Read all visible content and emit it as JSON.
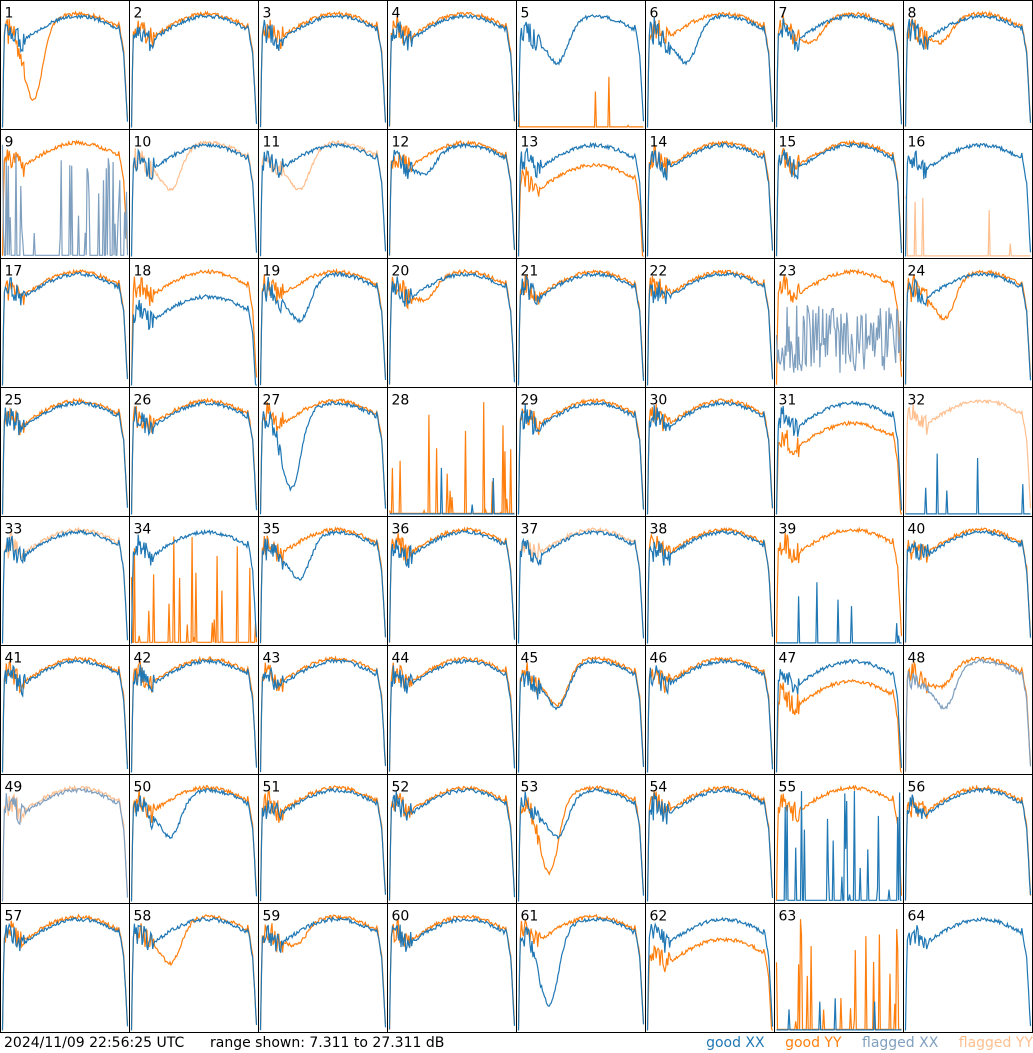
{
  "footer": {
    "timestamp": "2024/11/09 22:56:25 UTC",
    "range": "range shown: 7.311 to 27.311 dB"
  },
  "legend": [
    {
      "label": "good XX",
      "color": "#1f77b4"
    },
    {
      "label": "good YY",
      "color": "#ff7f0e"
    },
    {
      "label": "flagged XX",
      "color": "#7f9fbf"
    },
    {
      "label": "flagged YY",
      "color": "#ffbf8f"
    }
  ],
  "chart_data": {
    "type": "line",
    "grid": {
      "rows": 8,
      "cols": 8
    },
    "panels": [
      {
        "id": "1",
        "xx": "good",
        "yy": "good",
        "shape_xx": "normal",
        "shape_yy": "deep_dip"
      },
      {
        "id": "2",
        "xx": "good",
        "yy": "good",
        "shape_xx": "normal",
        "shape_yy": "normal"
      },
      {
        "id": "3",
        "xx": "good",
        "yy": "good",
        "shape_xx": "normal",
        "shape_yy": "normal"
      },
      {
        "id": "4",
        "xx": "good",
        "yy": "good",
        "shape_xx": "normal",
        "shape_yy": "normal"
      },
      {
        "id": "5",
        "xx": "good",
        "yy": "good",
        "shape_xx": "dip",
        "shape_yy": "bottom"
      },
      {
        "id": "6",
        "xx": "good",
        "yy": "good",
        "shape_xx": "dip",
        "shape_yy": "normal"
      },
      {
        "id": "7",
        "xx": "good",
        "yy": "good",
        "shape_xx": "normal",
        "shape_yy": "shallow_dip"
      },
      {
        "id": "8",
        "xx": "good",
        "yy": "good",
        "shape_xx": "normal",
        "shape_yy": "shallow_dip"
      },
      {
        "id": "9",
        "xx": "flagged",
        "yy": "good",
        "shape_xx": "spikes",
        "shape_yy": "normal"
      },
      {
        "id": "10",
        "xx": "good",
        "yy": "flagged",
        "shape_xx": "normal",
        "shape_yy": "dip"
      },
      {
        "id": "11",
        "xx": "good",
        "yy": "flagged",
        "shape_xx": "normal",
        "shape_yy": "dip"
      },
      {
        "id": "12",
        "xx": "good",
        "yy": "good",
        "shape_xx": "shallow_dip",
        "shape_yy": "normal"
      },
      {
        "id": "13",
        "xx": "good",
        "yy": "good",
        "shape_xx": "normal",
        "shape_yy": "low"
      },
      {
        "id": "14",
        "xx": "good",
        "yy": "good",
        "shape_xx": "normal",
        "shape_yy": "normal"
      },
      {
        "id": "15",
        "xx": "good",
        "yy": "good",
        "shape_xx": "normal",
        "shape_yy": "normal"
      },
      {
        "id": "16",
        "xx": "good",
        "yy": "flagged",
        "shape_xx": "normal",
        "shape_yy": "bottom"
      },
      {
        "id": "17",
        "xx": "good",
        "yy": "good",
        "shape_xx": "normal",
        "shape_yy": "normal"
      },
      {
        "id": "18",
        "xx": "good",
        "yy": "good",
        "shape_xx": "low",
        "shape_yy": "normal"
      },
      {
        "id": "19",
        "xx": "good",
        "yy": "good",
        "shape_xx": "dip",
        "shape_yy": "normal"
      },
      {
        "id": "20",
        "xx": "good",
        "yy": "good",
        "shape_xx": "normal",
        "shape_yy": "shallow_dip"
      },
      {
        "id": "21",
        "xx": "good",
        "yy": "good",
        "shape_xx": "normal",
        "shape_yy": "normal"
      },
      {
        "id": "22",
        "xx": "good",
        "yy": "good",
        "shape_xx": "normal",
        "shape_yy": "normal"
      },
      {
        "id": "23",
        "xx": "flagged",
        "yy": "good",
        "shape_xx": "noisy",
        "shape_yy": "normal"
      },
      {
        "id": "24",
        "xx": "good",
        "yy": "good",
        "shape_xx": "normal",
        "shape_yy": "dip"
      },
      {
        "id": "25",
        "xx": "good",
        "yy": "good",
        "shape_xx": "normal",
        "shape_yy": "normal"
      },
      {
        "id": "26",
        "xx": "good",
        "yy": "good",
        "shape_xx": "normal",
        "shape_yy": "normal"
      },
      {
        "id": "27",
        "xx": "good",
        "yy": "good",
        "shape_xx": "deep_dip",
        "shape_yy": "normal"
      },
      {
        "id": "28",
        "xx": "good",
        "yy": "good",
        "shape_xx": "bottom",
        "shape_yy": "spikes"
      },
      {
        "id": "29",
        "xx": "good",
        "yy": "good",
        "shape_xx": "normal",
        "shape_yy": "normal"
      },
      {
        "id": "30",
        "xx": "good",
        "yy": "good",
        "shape_xx": "normal",
        "shape_yy": "normal"
      },
      {
        "id": "31",
        "xx": "good",
        "yy": "good",
        "shape_xx": "normal",
        "shape_yy": "low"
      },
      {
        "id": "32",
        "xx": "good",
        "yy": "flagged",
        "shape_xx": "bottom",
        "shape_yy": "normal"
      },
      {
        "id": "33",
        "xx": "good",
        "yy": "flagged",
        "shape_xx": "normal",
        "shape_yy": "normal"
      },
      {
        "id": "34",
        "xx": "good",
        "yy": "good",
        "shape_xx": "normal",
        "shape_yy": "spikes"
      },
      {
        "id": "35",
        "xx": "good",
        "yy": "good",
        "shape_xx": "dip",
        "shape_yy": "normal"
      },
      {
        "id": "36",
        "xx": "good",
        "yy": "good",
        "shape_xx": "normal",
        "shape_yy": "normal"
      },
      {
        "id": "37",
        "xx": "good",
        "yy": "flagged",
        "shape_xx": "normal",
        "shape_yy": "normal"
      },
      {
        "id": "38",
        "xx": "good",
        "yy": "good",
        "shape_xx": "normal",
        "shape_yy": "normal"
      },
      {
        "id": "39",
        "xx": "good",
        "yy": "good",
        "shape_xx": "bottom",
        "shape_yy": "normal"
      },
      {
        "id": "40",
        "xx": "good",
        "yy": "good",
        "shape_xx": "normal",
        "shape_yy": "normal"
      },
      {
        "id": "41",
        "xx": "good",
        "yy": "good",
        "shape_xx": "normal",
        "shape_yy": "normal"
      },
      {
        "id": "42",
        "xx": "good",
        "yy": "good",
        "shape_xx": "normal",
        "shape_yy": "normal"
      },
      {
        "id": "43",
        "xx": "good",
        "yy": "good",
        "shape_xx": "normal",
        "shape_yy": "normal"
      },
      {
        "id": "44",
        "xx": "good",
        "yy": "good",
        "shape_xx": "normal",
        "shape_yy": "normal"
      },
      {
        "id": "45",
        "xx": "good",
        "yy": "good",
        "shape_xx": "dip",
        "shape_yy": "dip"
      },
      {
        "id": "46",
        "xx": "good",
        "yy": "good",
        "shape_xx": "normal",
        "shape_yy": "normal"
      },
      {
        "id": "47",
        "xx": "good",
        "yy": "good",
        "shape_xx": "normal",
        "shape_yy": "low"
      },
      {
        "id": "48",
        "xx": "flagged",
        "yy": "good",
        "shape_xx": "dip",
        "shape_yy": "shallow_dip"
      },
      {
        "id": "49",
        "xx": "flagged",
        "yy": "flagged",
        "shape_xx": "normal",
        "shape_yy": "normal"
      },
      {
        "id": "50",
        "xx": "good",
        "yy": "good",
        "shape_xx": "dip",
        "shape_yy": "normal"
      },
      {
        "id": "51",
        "xx": "good",
        "yy": "good",
        "shape_xx": "normal",
        "shape_yy": "normal"
      },
      {
        "id": "52",
        "xx": "good",
        "yy": "good",
        "shape_xx": "normal",
        "shape_yy": "normal"
      },
      {
        "id": "53",
        "xx": "good",
        "yy": "good",
        "shape_xx": "dip",
        "shape_yy": "deep_dip"
      },
      {
        "id": "54",
        "xx": "good",
        "yy": "good",
        "shape_xx": "normal",
        "shape_yy": "normal"
      },
      {
        "id": "55",
        "xx": "good",
        "yy": "good",
        "shape_xx": "spikes",
        "shape_yy": "normal"
      },
      {
        "id": "56",
        "xx": "good",
        "yy": "good",
        "shape_xx": "normal",
        "shape_yy": "normal"
      },
      {
        "id": "57",
        "xx": "good",
        "yy": "good",
        "shape_xx": "normal",
        "shape_yy": "normal"
      },
      {
        "id": "58",
        "xx": "good",
        "yy": "good",
        "shape_xx": "normal",
        "shape_yy": "dip"
      },
      {
        "id": "59",
        "xx": "good",
        "yy": "good",
        "shape_xx": "normal",
        "shape_yy": "shallow_dip"
      },
      {
        "id": "60",
        "xx": "good",
        "yy": "good",
        "shape_xx": "normal",
        "shape_yy": "normal"
      },
      {
        "id": "61",
        "xx": "good",
        "yy": "good",
        "shape_xx": "deep_dip",
        "shape_yy": "normal"
      },
      {
        "id": "62",
        "xx": "good",
        "yy": "good",
        "shape_xx": "normal",
        "shape_yy": "low"
      },
      {
        "id": "63",
        "xx": "good",
        "yy": "good",
        "shape_xx": "bottom",
        "shape_yy": "spikes"
      },
      {
        "id": "64",
        "xx": "good",
        "yy": "good",
        "shape_xx": "normal",
        "shape_yy": "none"
      }
    ]
  }
}
